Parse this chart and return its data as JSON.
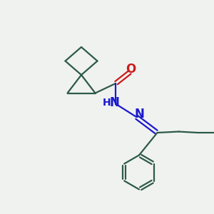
{
  "bg_color": "#f0f2f0",
  "bond_color": "#2d5a4a",
  "N_color": "#1a1acc",
  "O_color": "#cc1a1a",
  "line_width": 1.6,
  "font_size": 11,
  "fig_width": 3.0,
  "fig_height": 3.0,
  "dpi": 100,
  "xlim": [
    0,
    10
  ],
  "ylim": [
    0,
    10
  ]
}
